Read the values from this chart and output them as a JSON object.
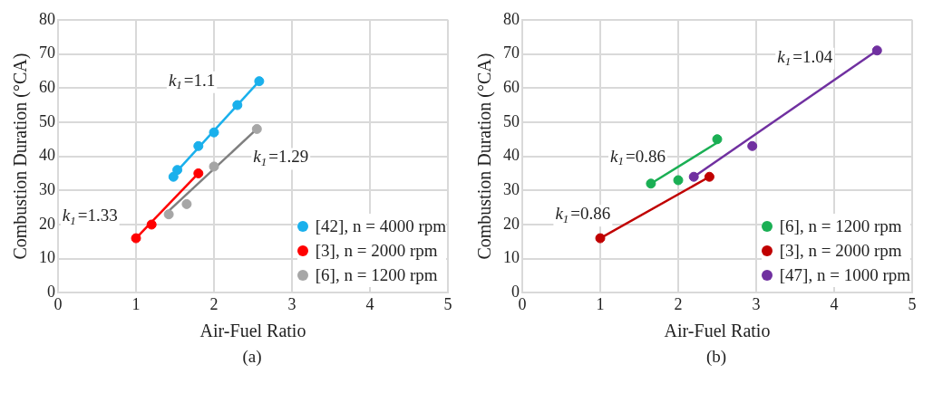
{
  "chart_data": [
    {
      "type": "scatter",
      "xlabel": "Air-Fuel Ratio",
      "ylabel": "Combustion Duration (°CA)",
      "xlim": [
        0,
        5
      ],
      "xticks": [
        0,
        1,
        2,
        3,
        4,
        5
      ],
      "ylim": [
        0,
        80
      ],
      "yticks": [
        0,
        10,
        20,
        30,
        40,
        50,
        60,
        70,
        80
      ],
      "grid": true,
      "legend": "bottom right",
      "marker": "circle",
      "series": [
        {
          "name": "[42], n = 4000 rpm",
          "color": "#1ab0ec",
          "x": [
            1.48,
            1.53,
            1.8,
            2.0,
            2.3,
            2.58
          ],
          "values": [
            34,
            36,
            43,
            47,
            55,
            62
          ]
        },
        {
          "name": "[3], n = 2000 rpm",
          "color": "#ff0000",
          "x": [
            1.0,
            1.2,
            1.8
          ],
          "values": [
            16,
            20,
            35
          ]
        },
        {
          "name": "[6], n = 1200 rpm",
          "color": "#a6a6a6",
          "x": [
            1.42,
            1.65,
            2.0,
            2.55
          ],
          "values": [
            23,
            26,
            37,
            48
          ]
        },
        {
          "type": "line",
          "marker": "none",
          "color": "#1ab0ec",
          "x": [
            1.48,
            2.58
          ],
          "values": [
            34.5,
            62
          ]
        },
        {
          "type": "line",
          "marker": "none",
          "color": "#7f7f7f",
          "x": [
            1.42,
            2.55
          ],
          "values": [
            24,
            48
          ]
        },
        {
          "type": "line",
          "marker": "none",
          "color": "#ff0000",
          "x": [
            1.0,
            1.8
          ],
          "values": [
            16,
            35
          ]
        }
      ],
      "annotations": [
        "k$_{1}$=1.1",
        "k$_{1}$=1.29",
        "k$_{1}$=1.33",
        "(a)"
      ]
    },
    {
      "type": "scatter",
      "xlabel": "Air-Fuel Ratio",
      "ylabel": "Combustion Duration (°CA)",
      "xlim": [
        0,
        5
      ],
      "xticks": [
        0,
        1,
        2,
        3,
        4,
        5
      ],
      "ylim": [
        0,
        80
      ],
      "yticks": [
        0,
        10,
        20,
        30,
        40,
        50,
        60,
        70,
        80
      ],
      "grid": true,
      "legend": "bottom right",
      "marker": "circle",
      "series": [
        {
          "name": "[6], n = 1200 rpm",
          "color": "#1aaf54",
          "x": [
            1.65,
            2.0,
            2.5
          ],
          "values": [
            32,
            33,
            45
          ]
        },
        {
          "name": "[3], n = 2000 rpm",
          "color": "#c00000",
          "x": [
            1.0,
            2.4
          ],
          "values": [
            16,
            34
          ]
        },
        {
          "name": "[47], n = 1000 rpm",
          "color": "#7030a0",
          "x": [
            2.2,
            2.95,
            4.55
          ],
          "values": [
            34,
            43,
            71
          ]
        },
        {
          "type": "line",
          "marker": "none",
          "color": "#7030a0",
          "x": [
            2.2,
            4.55
          ],
          "values": [
            34,
            71
          ]
        },
        {
          "type": "line",
          "marker": "none",
          "color": "#1aaf54",
          "x": [
            1.65,
            2.5
          ],
          "values": [
            32,
            44
          ]
        },
        {
          "type": "line",
          "marker": "none",
          "color": "#c00000",
          "x": [
            1.0,
            2.4
          ],
          "values": [
            16,
            34
          ]
        }
      ],
      "annotations": [
        "k$_{1}$=1.04",
        "k$_{1}$=0.86",
        "k$_{1}$=0.86",
        "(b)"
      ]
    }
  ]
}
